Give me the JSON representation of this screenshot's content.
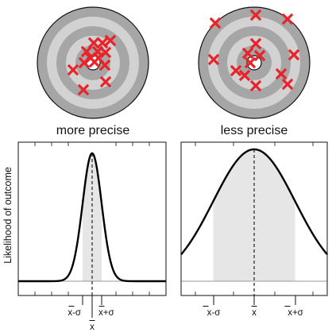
{
  "targets": {
    "left": {
      "caption": "more precise"
    },
    "right": {
      "caption": "less precise"
    }
  },
  "y_axis_label": "Likelihood of outcome",
  "tick_labels": {
    "mean": "x",
    "mean_minus_sigma": "x-σ",
    "mean_plus_sigma": "x+σ"
  },
  "chart_data": [
    {
      "type": "area",
      "title": "more precise",
      "ylabel": "Likelihood of outcome",
      "x_ticks": [
        "x-σ",
        "x",
        "x+σ"
      ],
      "mean": 0,
      "sigma": 1,
      "shaded_interval": [
        -1,
        1
      ]
    },
    {
      "type": "area",
      "title": "less precise",
      "ylabel": "",
      "x_ticks": [
        "x-σ",
        "x",
        "x+σ"
      ],
      "mean": 0,
      "sigma": 1,
      "shaded_interval": [
        -1,
        1
      ]
    }
  ],
  "colors": {
    "ring_dark": "#a6a6a6",
    "ring_light": "#d2d2d2",
    "outline": "#111111",
    "marker": "#e8232a",
    "shade": "#e6e6e6",
    "baseline_gray": "#9a9a9a"
  }
}
